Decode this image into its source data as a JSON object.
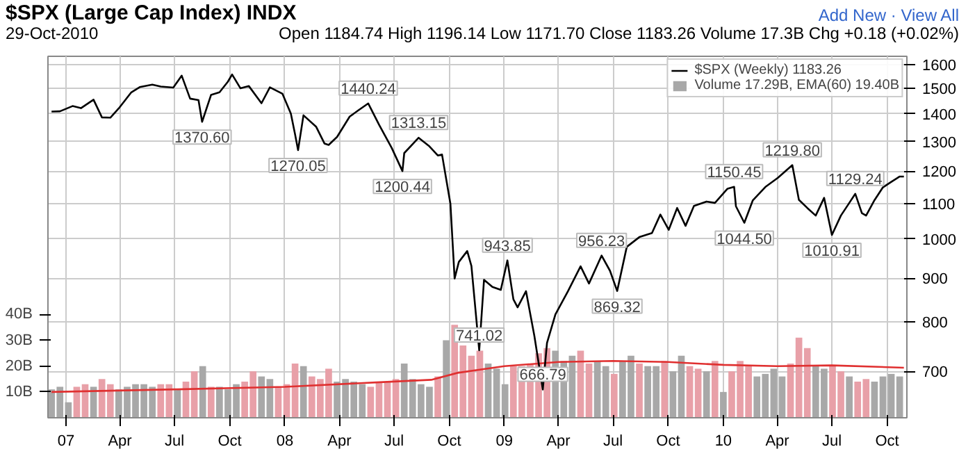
{
  "chart_data": {
    "type": "line",
    "title": "$SPX (Large Cap Index) INDX",
    "annotations": [
      "29-Oct-2010",
      "Open 1184.74 High 1196.14 Low 1171.70 Close 1183.26 Volume 17.3B Chg +0.18 (+0.02%)",
      "Add New · View All",
      {
        "text": "1370.60",
        "x": "2007-08-16",
        "y": 1370.6
      },
      {
        "text": "1270.05",
        "x": "2008-01-23",
        "y": 1270.05
      },
      {
        "text": "1440.24",
        "x": "2008-05-19",
        "y": 1440.24
      },
      {
        "text": "1200.44",
        "x": "2008-07-15",
        "y": 1200.44
      },
      {
        "text": "1313.15",
        "x": "2008-08-11",
        "y": 1313.15
      },
      {
        "text": "741.02",
        "x": "2008-11-20",
        "y": 741.02
      },
      {
        "text": "943.85",
        "x": "2009-01-06",
        "y": 943.85
      },
      {
        "text": "666.79",
        "x": "2009-03-06",
        "y": 666.79
      },
      {
        "text": "956.23",
        "x": "2009-06-12",
        "y": 956.23
      },
      {
        "text": "869.32",
        "x": "2009-07-08",
        "y": 869.32
      },
      {
        "text": "1150.45",
        "x": "2010-01-19",
        "y": 1150.45
      },
      {
        "text": "1044.50",
        "x": "2010-02-05",
        "y": 1044.5
      },
      {
        "text": "1219.80",
        "x": "2010-04-26",
        "y": 1219.8
      },
      {
        "text": "1010.91",
        "x": "2010-07-01",
        "y": 1010.91
      },
      {
        "text": "1129.24",
        "x": "2010-08-09",
        "y": 1129.24
      }
    ],
    "xlim": [
      "2006-12-02",
      "2010-11-03"
    ],
    "xticks": [
      {
        "value": "2007-01-01",
        "label": "07"
      },
      {
        "value": "2007-04-01",
        "label": "Apr"
      },
      {
        "value": "2007-07-01",
        "label": "Jul"
      },
      {
        "value": "2007-10-01",
        "label": "Oct"
      },
      {
        "value": "2008-01-01",
        "label": "08"
      },
      {
        "value": "2008-04-01",
        "label": "Apr"
      },
      {
        "value": "2008-07-01",
        "label": "Jul"
      },
      {
        "value": "2008-10-01",
        "label": "Oct"
      },
      {
        "value": "2009-01-01",
        "label": "09"
      },
      {
        "value": "2009-04-01",
        "label": "Apr"
      },
      {
        "value": "2009-07-01",
        "label": "Jul"
      },
      {
        "value": "2009-10-01",
        "label": "Oct"
      },
      {
        "value": "2010-01-01",
        "label": "10"
      },
      {
        "value": "2010-04-01",
        "label": "Apr"
      },
      {
        "value": "2010-07-01",
        "label": "Jul"
      },
      {
        "value": "2010-10-01",
        "label": "Oct"
      }
    ],
    "ylim": [
      618,
      1635
    ],
    "yticks": [
      700,
      800,
      900,
      1000,
      1100,
      1200,
      1300,
      1400,
      1500,
      1600
    ],
    "y2lim": [
      0,
      140
    ],
    "y2ticks": [
      {
        "value": 10,
        "label": "10B"
      },
      {
        "value": 20,
        "label": "20B"
      },
      {
        "value": 30,
        "label": "30B"
      },
      {
        "value": 40,
        "label": "40B"
      }
    ],
    "log": "y",
    "grid": true,
    "legend": "top right",
    "series": [
      {
        "name": "Volume 17.29B, EMA(60) 19.40B",
        "type": "bar",
        "axis": "y2",
        "x": [
          "2006-12-08",
          "2006-12-22",
          "2007-01-05",
          "2007-01-19",
          "2007-02-02",
          "2007-02-16",
          "2007-03-02",
          "2007-03-16",
          "2007-03-30",
          "2007-04-13",
          "2007-04-27",
          "2007-05-11",
          "2007-05-25",
          "2007-06-08",
          "2007-06-22",
          "2007-07-06",
          "2007-07-20",
          "2007-08-03",
          "2007-08-17",
          "2007-08-31",
          "2007-09-14",
          "2007-09-28",
          "2007-10-12",
          "2007-10-26",
          "2007-11-09",
          "2007-11-23",
          "2007-12-07",
          "2007-12-21",
          "2008-01-04",
          "2008-01-18",
          "2008-02-01",
          "2008-02-15",
          "2008-02-29",
          "2008-03-14",
          "2008-03-28",
          "2008-04-11",
          "2008-04-25",
          "2008-05-09",
          "2008-05-23",
          "2008-06-06",
          "2008-06-20",
          "2008-07-04",
          "2008-07-18",
          "2008-08-01",
          "2008-08-15",
          "2008-08-29",
          "2008-09-12",
          "2008-09-26",
          "2008-10-10",
          "2008-10-24",
          "2008-11-07",
          "2008-11-21",
          "2008-12-05",
          "2008-12-19",
          "2009-01-02",
          "2009-01-16",
          "2009-01-30",
          "2009-02-13",
          "2009-02-27",
          "2009-03-13",
          "2009-03-27",
          "2009-04-10",
          "2009-04-24",
          "2009-05-08",
          "2009-05-22",
          "2009-06-05",
          "2009-06-19",
          "2009-07-03",
          "2009-07-17",
          "2009-07-31",
          "2009-08-14",
          "2009-08-28",
          "2009-09-11",
          "2009-09-25",
          "2009-10-09",
          "2009-10-23",
          "2009-11-06",
          "2009-11-20",
          "2009-12-04",
          "2009-12-18",
          "2010-01-01",
          "2010-01-15",
          "2010-01-29",
          "2010-02-12",
          "2010-02-26",
          "2010-03-12",
          "2010-03-26",
          "2010-04-09",
          "2010-04-23",
          "2010-05-07",
          "2010-05-21",
          "2010-06-04",
          "2010-06-18",
          "2010-07-02",
          "2010-07-16",
          "2010-07-30",
          "2010-08-13",
          "2010-08-27",
          "2010-09-10",
          "2010-09-24",
          "2010-10-08",
          "2010-10-22"
        ],
        "values": [
          11,
          12,
          6,
          12,
          13,
          12,
          15,
          13,
          11,
          12,
          13,
          13,
          12,
          13,
          13,
          11,
          14,
          18,
          20,
          12,
          12,
          11,
          13,
          14,
          18,
          16,
          15,
          12,
          13,
          21,
          20,
          16,
          15,
          19,
          14,
          15,
          14,
          13,
          12,
          14,
          14,
          15,
          21,
          15,
          13,
          12,
          16,
          30,
          36,
          28,
          24,
          26,
          21,
          19,
          13,
          20,
          20,
          21,
          25,
          27,
          26,
          22,
          24,
          26,
          21,
          22,
          20,
          17,
          22,
          24,
          21,
          20,
          20,
          22,
          18,
          24,
          20,
          19,
          18,
          22,
          10,
          18,
          22,
          20,
          16,
          17,
          19,
          16,
          21,
          31,
          27,
          20,
          19,
          20,
          18,
          16,
          14,
          15,
          14,
          16,
          17,
          16
        ],
        "colors": [
          "#a8a8a8",
          "#a8a8a8",
          "#a8a8a8",
          "#e8a0a8",
          "#e8a0a8",
          "#a8a8a8",
          "#e8a0a8",
          "#e8a0a8",
          "#a8a8a8",
          "#a8a8a8",
          "#a8a8a8",
          "#a8a8a8",
          "#a8a8a8",
          "#e8a0a8",
          "#e8a0a8",
          "#a8a8a8",
          "#e8a0a8",
          "#e8a0a8",
          "#a8a8a8",
          "#e8a0a8",
          "#a8a8a8",
          "#a8a8a8",
          "#a8a8a8",
          "#e8a0a8",
          "#e8a0a8",
          "#a8a8a8",
          "#a8a8a8",
          "#e8a0a8",
          "#e8a0a8",
          "#e8a0a8",
          "#a8a8a8",
          "#e8a0a8",
          "#e8a0a8",
          "#e8a0a8",
          "#a8a8a8",
          "#a8a8a8",
          "#a8a8a8",
          "#a8a8a8",
          "#e8a0a8",
          "#e8a0a8",
          "#e8a0a8",
          "#e8a0a8",
          "#a8a8a8",
          "#a8a8a8",
          "#a8a8a8",
          "#a8a8a8",
          "#e8a0a8",
          "#a8a8a8",
          "#e8a0a8",
          "#e8a0a8",
          "#e8a0a8",
          "#e8a0a8",
          "#a8a8a8",
          "#a8a8a8",
          "#a8a8a8",
          "#e8a0a8",
          "#e8a0a8",
          "#e8a0a8",
          "#e8a0a8",
          "#e8a0a8",
          "#a8a8a8",
          "#a8a8a8",
          "#a8a8a8",
          "#e8a0a8",
          "#e8a0a8",
          "#a8a8a8",
          "#a8a8a8",
          "#e8a0a8",
          "#a8a8a8",
          "#a8a8a8",
          "#e8a0a8",
          "#a8a8a8",
          "#a8a8a8",
          "#e8a0a8",
          "#a8a8a8",
          "#a8a8a8",
          "#e8a0a8",
          "#e8a0a8",
          "#a8a8a8",
          "#e8a0a8",
          "#a8a8a8",
          "#e8a0a8",
          "#e8a0a8",
          "#e8a0a8",
          "#a8a8a8",
          "#a8a8a8",
          "#a8a8a8",
          "#a8a8a8",
          "#e8a0a8",
          "#e8a0a8",
          "#e8a0a8",
          "#a8a8a8",
          "#a8a8a8",
          "#e8a0a8",
          "#e8a0a8",
          "#a8a8a8",
          "#e8a0a8",
          "#e8a0a8",
          "#a8a8a8",
          "#a8a8a8",
          "#a8a8a8",
          "#a8a8a8"
        ]
      },
      {
        "type": "line",
        "axis": "y2",
        "color": "#e03030",
        "x": [
          "2006-12-08",
          "2007-07-01",
          "2008-01-01",
          "2008-06-01",
          "2008-09-01",
          "2008-10-15",
          "2009-01-01",
          "2009-04-01",
          "2009-07-01",
          "2009-10-01",
          "2010-01-01",
          "2010-04-01",
          "2010-07-01",
          "2010-10-29"
        ],
        "values": [
          10,
          11,
          12,
          13.7,
          14.7,
          17.4,
          20,
          21.6,
          22,
          21.6,
          20.5,
          20,
          20.3,
          19.4
        ]
      },
      {
        "name": "$SPX (Weekly) 1183.26",
        "color": "#000000",
        "x": [
          "2006-12-08",
          "2006-12-22",
          "2007-01-12",
          "2007-01-26",
          "2007-02-16",
          "2007-03-02",
          "2007-03-16",
          "2007-03-30",
          "2007-04-20",
          "2007-05-04",
          "2007-05-25",
          "2007-06-08",
          "2007-06-29",
          "2007-07-13",
          "2007-07-27",
          "2007-08-10",
          "2007-08-16",
          "2007-08-31",
          "2007-09-14",
          "2007-09-28",
          "2007-10-05",
          "2007-10-19",
          "2007-11-02",
          "2007-11-23",
          "2007-12-07",
          "2007-12-28",
          "2008-01-11",
          "2008-01-18",
          "2008-01-23",
          "2008-02-01",
          "2008-02-22",
          "2008-03-07",
          "2008-03-14",
          "2008-03-28",
          "2008-04-18",
          "2008-05-02",
          "2008-05-19",
          "2008-06-06",
          "2008-06-27",
          "2008-07-15",
          "2008-07-18",
          "2008-08-11",
          "2008-08-29",
          "2008-09-12",
          "2008-09-19",
          "2008-10-03",
          "2008-10-10",
          "2008-10-17",
          "2008-10-31",
          "2008-11-07",
          "2008-11-20",
          "2008-11-28",
          "2008-12-12",
          "2008-12-26",
          "2009-01-06",
          "2009-01-16",
          "2009-01-23",
          "2009-02-06",
          "2009-02-20",
          "2009-03-06",
          "2009-03-13",
          "2009-03-27",
          "2009-04-17",
          "2009-05-08",
          "2009-05-22",
          "2009-06-12",
          "2009-06-26",
          "2009-07-08",
          "2009-07-24",
          "2009-08-14",
          "2009-09-04",
          "2009-09-18",
          "2009-10-02",
          "2009-10-16",
          "2009-10-30",
          "2009-11-13",
          "2009-12-04",
          "2009-12-18",
          "2010-01-08",
          "2010-01-19",
          "2010-01-22",
          "2010-02-05",
          "2010-02-19",
          "2010-03-12",
          "2010-04-02",
          "2010-04-26",
          "2010-05-07",
          "2010-05-21",
          "2010-06-04",
          "2010-06-18",
          "2010-07-01",
          "2010-07-16",
          "2010-07-30",
          "2010-08-09",
          "2010-08-20",
          "2010-08-27",
          "2010-09-10",
          "2010-09-24",
          "2010-10-08",
          "2010-10-22",
          "2010-10-29"
        ],
        "values": [
          1409,
          1410,
          1430,
          1422,
          1455,
          1387,
          1386,
          1421,
          1484,
          1505,
          1515,
          1507,
          1503,
          1552,
          1459,
          1453,
          1370.6,
          1474,
          1484,
          1527,
          1557,
          1500,
          1509,
          1441,
          1504,
          1478,
          1401,
          1325,
          1270.05,
          1395,
          1353,
          1293,
          1288,
          1316,
          1390,
          1413,
          1440.24,
          1360,
          1278,
          1200.44,
          1260,
          1313.15,
          1283,
          1252,
          1255,
          1099,
          899,
          940,
          968,
          930,
          741.02,
          896,
          879,
          872,
          943.85,
          850,
          832,
          869,
          770,
          666.79,
          756,
          816,
          869,
          929,
          887,
          956.23,
          918,
          869.32,
          979,
          1005,
          1016,
          1068,
          1025,
          1087,
          1036,
          1093,
          1106,
          1102,
          1145,
          1150.45,
          1092,
          1044.5,
          1109,
          1150,
          1179,
          1219.8,
          1111,
          1087,
          1065,
          1117,
          1010.91,
          1065,
          1102,
          1129.24,
          1072,
          1065,
          1110,
          1149,
          1166,
          1183,
          1183
        ]
      }
    ]
  }
}
